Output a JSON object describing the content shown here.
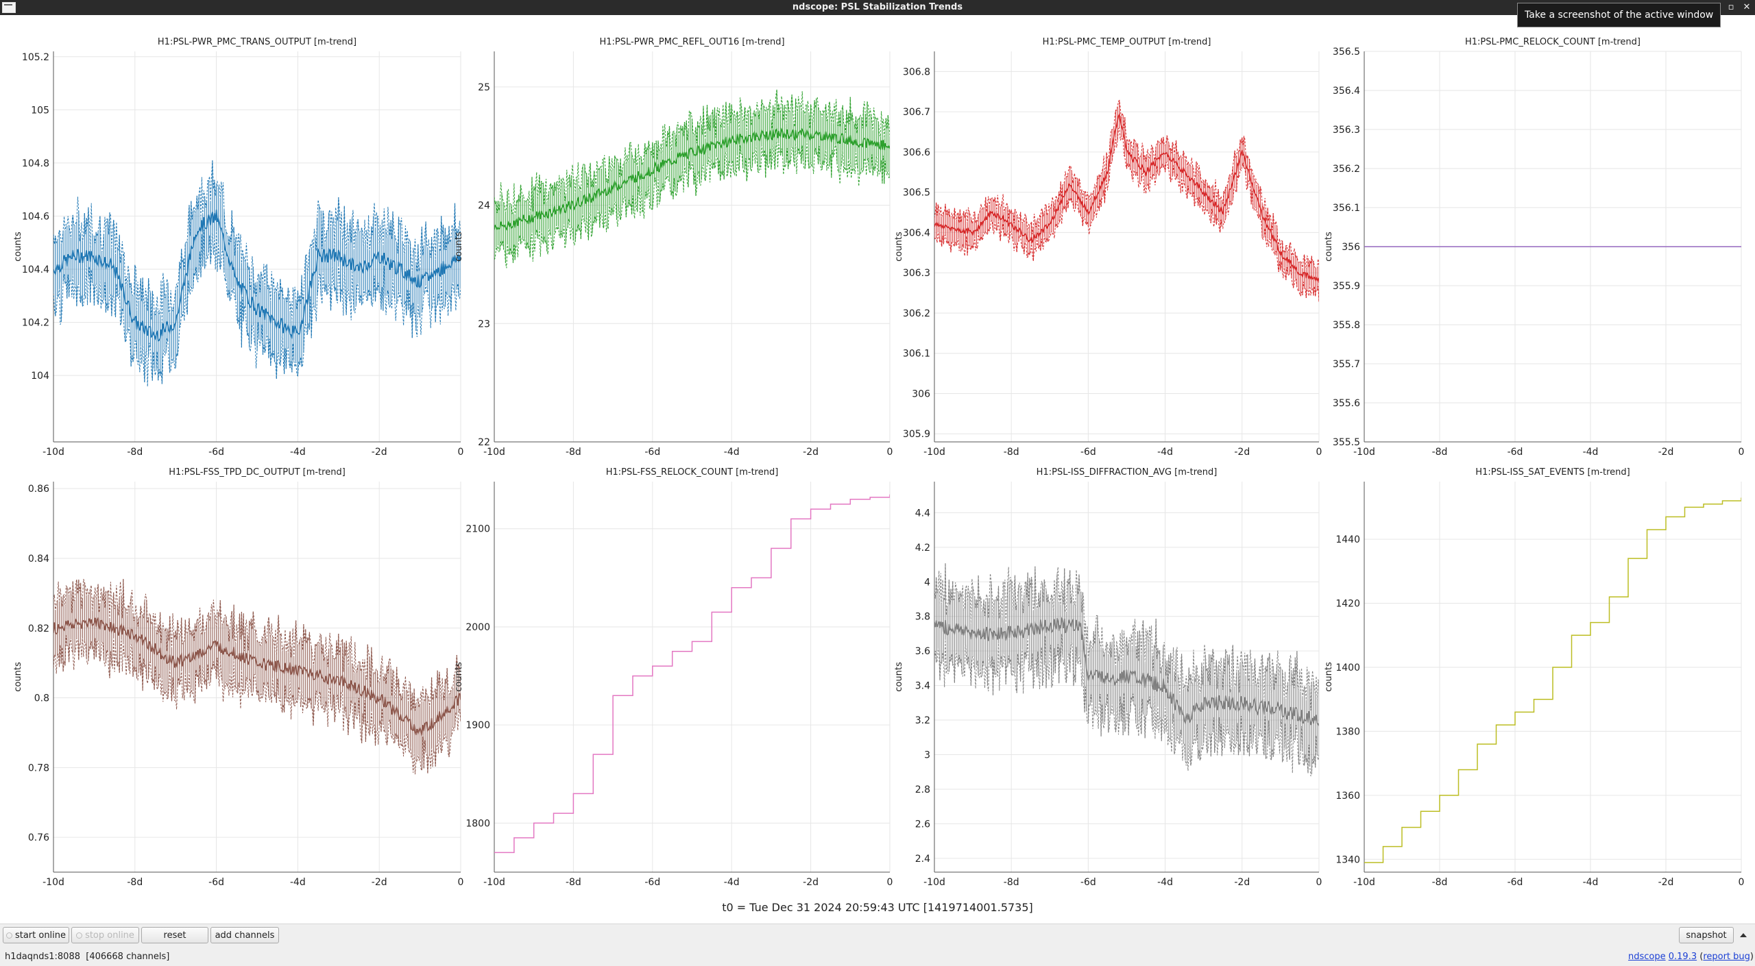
{
  "window": {
    "title": "ndscope: PSL Stabilization Trends",
    "tooltip": "Take a screenshot of the active window",
    "buttons": [
      "minimize",
      "restore",
      "maximize",
      "close"
    ]
  },
  "t0_label": "t0 = Tue Dec 31 2024 20:59:43 UTC [1419714001.5735]",
  "toolbar": {
    "start_online": "start online",
    "stop_online": "stop online",
    "reset": "reset",
    "add_channels": "add channels",
    "snapshot": "snapshot"
  },
  "status": {
    "server": "h1daqnds1:8088",
    "channels": "[406668 channels]",
    "ndscope_link": "ndscope",
    "version_link": "0.19.3",
    "report_link": "report bug",
    "paren_open": "(",
    "paren_close": ")"
  },
  "chart_data": [
    {
      "type": "line",
      "title": "H1:PSL-PWR_PMC_TRANS_OUTPUT [m-trend]",
      "ylabel": "counts",
      "color": "#1f77b4",
      "xlim": [
        -10,
        0
      ],
      "ylim": [
        103.75,
        105.22
      ],
      "xticks": [
        -10,
        -8,
        -6,
        -4,
        -2,
        0
      ],
      "xtick_labels": [
        "-10d",
        "-8d",
        "-6d",
        "-4d",
        "-2d",
        "0"
      ],
      "yticks": [
        104,
        104.2,
        104.4,
        104.6,
        104.8,
        105,
        105.2
      ],
      "ytick_labels": [
        "104",
        "104.2",
        "104.4",
        "104.6",
        "104.8",
        "105",
        "105.2"
      ],
      "x": [
        -10,
        -9.5,
        -9,
        -8.5,
        -8,
        -7.5,
        -7,
        -6.5,
        -6,
        -5.5,
        -5,
        -4.5,
        -4,
        -3.5,
        -3,
        -2.5,
        -2,
        -1.5,
        -1,
        -0.5,
        0
      ],
      "y": [
        104.4,
        104.45,
        104.45,
        104.4,
        104.2,
        104.15,
        104.2,
        104.55,
        104.6,
        104.35,
        104.25,
        104.2,
        104.15,
        104.45,
        104.45,
        104.4,
        104.45,
        104.4,
        104.35,
        104.4,
        104.45
      ],
      "spread": 0.18
    },
    {
      "type": "line",
      "title": "H1:PSL-PWR_PMC_REFL_OUT16 [m-trend]",
      "ylabel": "counts",
      "color": "#2ca02c",
      "xlim": [
        -10,
        0
      ],
      "ylim": [
        22.0,
        25.3
      ],
      "xticks": [
        -10,
        -8,
        -6,
        -4,
        -2,
        0
      ],
      "xtick_labels": [
        "-10d",
        "-8d",
        "-6d",
        "-4d",
        "-2d",
        "0"
      ],
      "yticks": [
        22,
        23,
        24,
        25
      ],
      "ytick_labels": [
        "22",
        "23",
        "24",
        "25"
      ],
      "x": [
        -10,
        -9,
        -8,
        -7,
        -6,
        -5,
        -4,
        -3,
        -2,
        -1,
        0
      ],
      "y": [
        23.8,
        23.9,
        24.0,
        24.15,
        24.3,
        24.45,
        24.55,
        24.6,
        24.6,
        24.55,
        24.5
      ],
      "spread": 0.3
    },
    {
      "type": "line",
      "title": "H1:PSL-PMC_TEMP_OUTPUT [m-trend]",
      "ylabel": "counts",
      "color": "#d62728",
      "xlim": [
        -10,
        0
      ],
      "ylim": [
        305.88,
        306.85
      ],
      "xticks": [
        -10,
        -8,
        -6,
        -4,
        -2,
        0
      ],
      "xtick_labels": [
        "-10d",
        "-8d",
        "-6d",
        "-4d",
        "-2d",
        "0"
      ],
      "yticks": [
        305.9,
        306,
        306.1,
        306.2,
        306.3,
        306.4,
        306.5,
        306.6,
        306.7,
        306.8
      ],
      "ytick_labels": [
        "305.9",
        "306",
        "306.1",
        "306.2",
        "306.3",
        "306.4",
        "306.5",
        "306.6",
        "306.7",
        "306.8"
      ],
      "x": [
        -10,
        -9,
        -8.5,
        -8,
        -7.5,
        -7,
        -6.5,
        -6,
        -5.5,
        -5.2,
        -5,
        -4.5,
        -4,
        -3.5,
        -3,
        -2.5,
        -2,
        -1.5,
        -1,
        -0.5,
        0
      ],
      "y": [
        306.42,
        306.4,
        306.45,
        306.42,
        306.38,
        306.42,
        306.52,
        306.45,
        306.55,
        306.7,
        306.6,
        306.55,
        306.6,
        306.55,
        306.5,
        306.45,
        306.6,
        306.45,
        306.35,
        306.3,
        306.28
      ],
      "spread": 0.05
    },
    {
      "type": "line",
      "title": "H1:PSL-PMC_RELOCK_COUNT [m-trend]",
      "ylabel": "counts",
      "color": "#9467bd",
      "xlim": [
        -10,
        0
      ],
      "ylim": [
        355.5,
        356.5
      ],
      "xticks": [
        -10,
        -8,
        -6,
        -4,
        -2,
        0
      ],
      "xtick_labels": [
        "-10d",
        "-8d",
        "-6d",
        "-4d",
        "-2d",
        "0"
      ],
      "yticks": [
        355.5,
        355.6,
        355.7,
        355.8,
        355.9,
        356,
        356.1,
        356.2,
        356.3,
        356.4,
        356.5
      ],
      "ytick_labels": [
        "355.5",
        "355.6",
        "355.7",
        "355.8",
        "355.9",
        "356",
        "356.1",
        "356.2",
        "356.3",
        "356.4",
        "356.5"
      ],
      "x": [
        -10,
        0
      ],
      "y": [
        356,
        356
      ],
      "spread": 0
    },
    {
      "type": "line",
      "title": "H1:PSL-FSS_TPD_DC_OUTPUT [m-trend]",
      "ylabel": "counts",
      "color": "#8c564b",
      "xlim": [
        -10,
        0
      ],
      "ylim": [
        0.75,
        0.862
      ],
      "xticks": [
        -10,
        -8,
        -6,
        -4,
        -2,
        0
      ],
      "xtick_labels": [
        "-10d",
        "-8d",
        "-6d",
        "-4d",
        "-2d",
        "0"
      ],
      "yticks": [
        0.76,
        0.78,
        0.8,
        0.82,
        0.84,
        0.86
      ],
      "ytick_labels": [
        "0.76",
        "0.78",
        "0.8",
        "0.82",
        "0.84",
        "0.86"
      ],
      "x": [
        -10,
        -9,
        -8,
        -7,
        -6,
        -5,
        -4,
        -3,
        -2,
        -1.5,
        -1,
        -0.5,
        0
      ],
      "y": [
        0.82,
        0.822,
        0.818,
        0.81,
        0.815,
        0.81,
        0.808,
        0.805,
        0.8,
        0.795,
        0.79,
        0.795,
        0.8
      ],
      "spread": 0.012
    },
    {
      "type": "line",
      "title": "H1:PSL-FSS_RELOCK_COUNT [m-trend]",
      "ylabel": "counts",
      "color": "#e377c2",
      "xlim": [
        -10,
        0
      ],
      "ylim": [
        1750,
        2148
      ],
      "xticks": [
        -10,
        -8,
        -6,
        -4,
        -2,
        0
      ],
      "xtick_labels": [
        "-10d",
        "-8d",
        "-6d",
        "-4d",
        "-2d",
        "0"
      ],
      "yticks": [
        1800,
        1900,
        2000,
        2100
      ],
      "ytick_labels": [
        "1800",
        "1900",
        "2000",
        "2100"
      ],
      "x": [
        -10,
        -9.5,
        -9,
        -8.5,
        -8,
        -7.5,
        -7,
        -6.5,
        -6,
        -5.5,
        -5,
        -4.5,
        -4,
        -3.5,
        -3,
        -2.5,
        -2,
        -1.5,
        -1,
        -0.5,
        0
      ],
      "y": [
        1770,
        1785,
        1800,
        1810,
        1830,
        1870,
        1930,
        1950,
        1960,
        1975,
        1985,
        2015,
        2040,
        2050,
        2080,
        2110,
        2120,
        2125,
        2130,
        2132,
        2135
      ],
      "spread": 0,
      "step": true
    },
    {
      "type": "line",
      "title": "H1:PSL-ISS_DIFFRACTION_AVG [m-trend]",
      "ylabel": "counts",
      "color": "#7f7f7f",
      "xlim": [
        -10,
        0
      ],
      "ylim": [
        2.32,
        4.58
      ],
      "xticks": [
        -10,
        -8,
        -6,
        -4,
        -2,
        0
      ],
      "xtick_labels": [
        "-10d",
        "-8d",
        "-6d",
        "-4d",
        "-2d",
        "0"
      ],
      "yticks": [
        2.4,
        2.6,
        2.8,
        3,
        3.2,
        3.4,
        3.6,
        3.8,
        4,
        4.2,
        4.4
      ],
      "ytick_labels": [
        "2.4",
        "2.6",
        "2.8",
        "3",
        "3.2",
        "3.4",
        "3.6",
        "3.8",
        "4",
        "4.2",
        "4.4"
      ],
      "x": [
        -10,
        -9,
        -8,
        -7,
        -6.2,
        -6,
        -5,
        -4,
        -3.5,
        -3,
        -2,
        -1,
        0
      ],
      "y": [
        3.75,
        3.7,
        3.7,
        3.75,
        3.75,
        3.45,
        3.45,
        3.4,
        3.2,
        3.3,
        3.3,
        3.25,
        3.2
      ],
      "spread": 0.3
    },
    {
      "type": "line",
      "title": "H1:PSL-ISS_SAT_EVENTS [m-trend]",
      "ylabel": "counts",
      "color": "#bcbd22",
      "xlim": [
        -10,
        0
      ],
      "ylim": [
        1336,
        1458
      ],
      "xticks": [
        -10,
        -8,
        -6,
        -4,
        -2,
        0
      ],
      "xtick_labels": [
        "-10d",
        "-8d",
        "-6d",
        "-4d",
        "-2d",
        "0"
      ],
      "yticks": [
        1340,
        1360,
        1380,
        1400,
        1420,
        1440
      ],
      "ytick_labels": [
        "1340",
        "1360",
        "1380",
        "1400",
        "1420",
        "1440"
      ],
      "x": [
        -10,
        -9.5,
        -9,
        -8.5,
        -8,
        -7.5,
        -7,
        -6.5,
        -6,
        -5.5,
        -5,
        -4.5,
        -4,
        -3.5,
        -3,
        -2.5,
        -2,
        -1.5,
        -1,
        -0.5,
        0
      ],
      "y": [
        1339,
        1344,
        1350,
        1355,
        1360,
        1368,
        1376,
        1382,
        1386,
        1390,
        1400,
        1410,
        1414,
        1422,
        1434,
        1443,
        1447,
        1450,
        1451,
        1452,
        1453
      ],
      "spread": 0,
      "step": true
    }
  ]
}
